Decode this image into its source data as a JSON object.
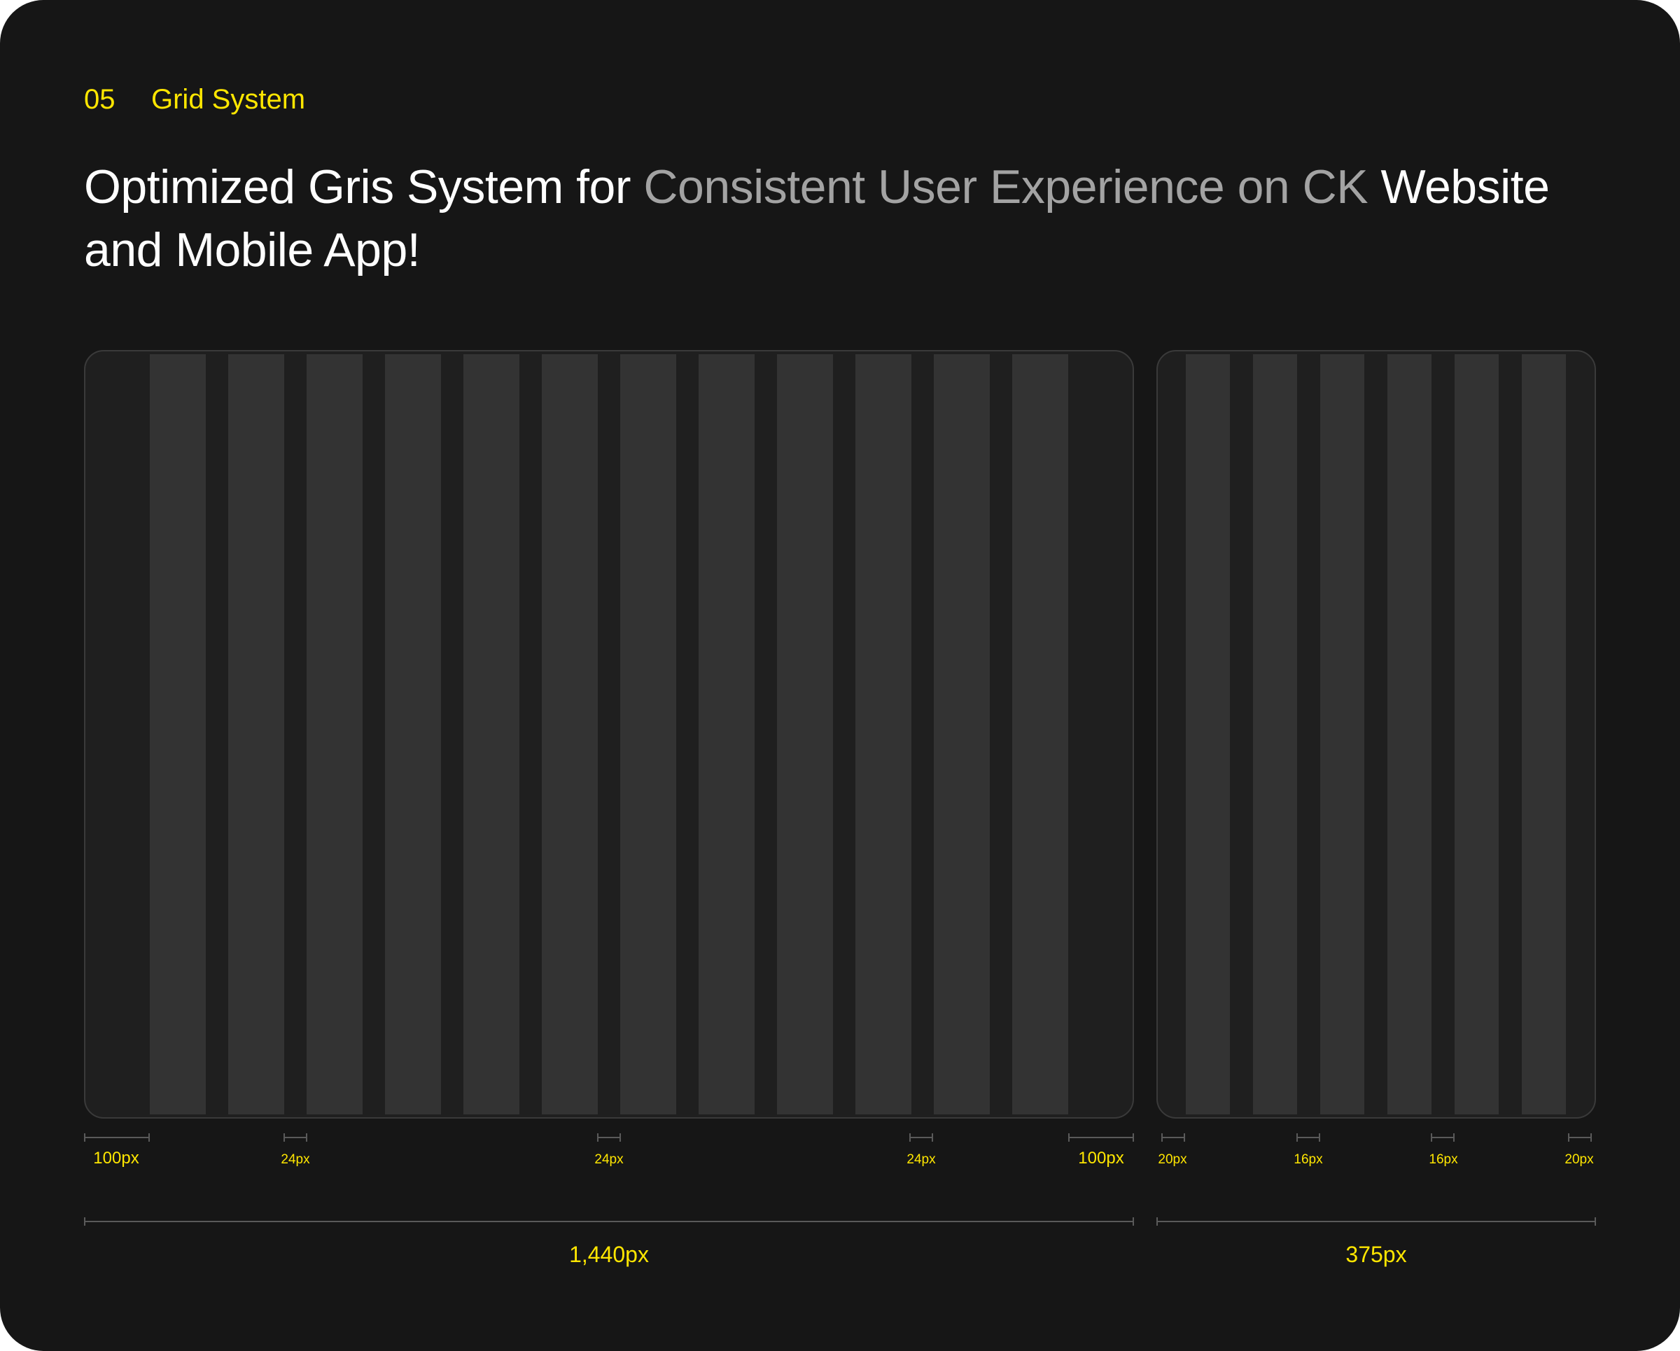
{
  "section": {
    "number": "05",
    "title": "Grid System"
  },
  "headline": {
    "part1": "Optimized Gris System for ",
    "part2": "Consistent User Experience on CK",
    "part3": " Website and Mobile App!"
  },
  "colors": {
    "accent": "#ffe600",
    "background": "#161616",
    "frame": "#1f1f1f",
    "column": "#333333",
    "muted_text": "#a3a3a3"
  },
  "desktop": {
    "name": "desktop-grid",
    "columns": 12,
    "width_label": "1,440px",
    "margin_label_left": "100px",
    "margin_label_right": "100px",
    "gutter_labels": [
      "24px",
      "24px",
      "24px"
    ]
  },
  "mobile": {
    "name": "mobile-grid",
    "columns": 6,
    "width_label": "375px",
    "margin_label_left": "20px",
    "margin_label_right": "20px",
    "gutter_labels": [
      "16px",
      "16px"
    ]
  }
}
